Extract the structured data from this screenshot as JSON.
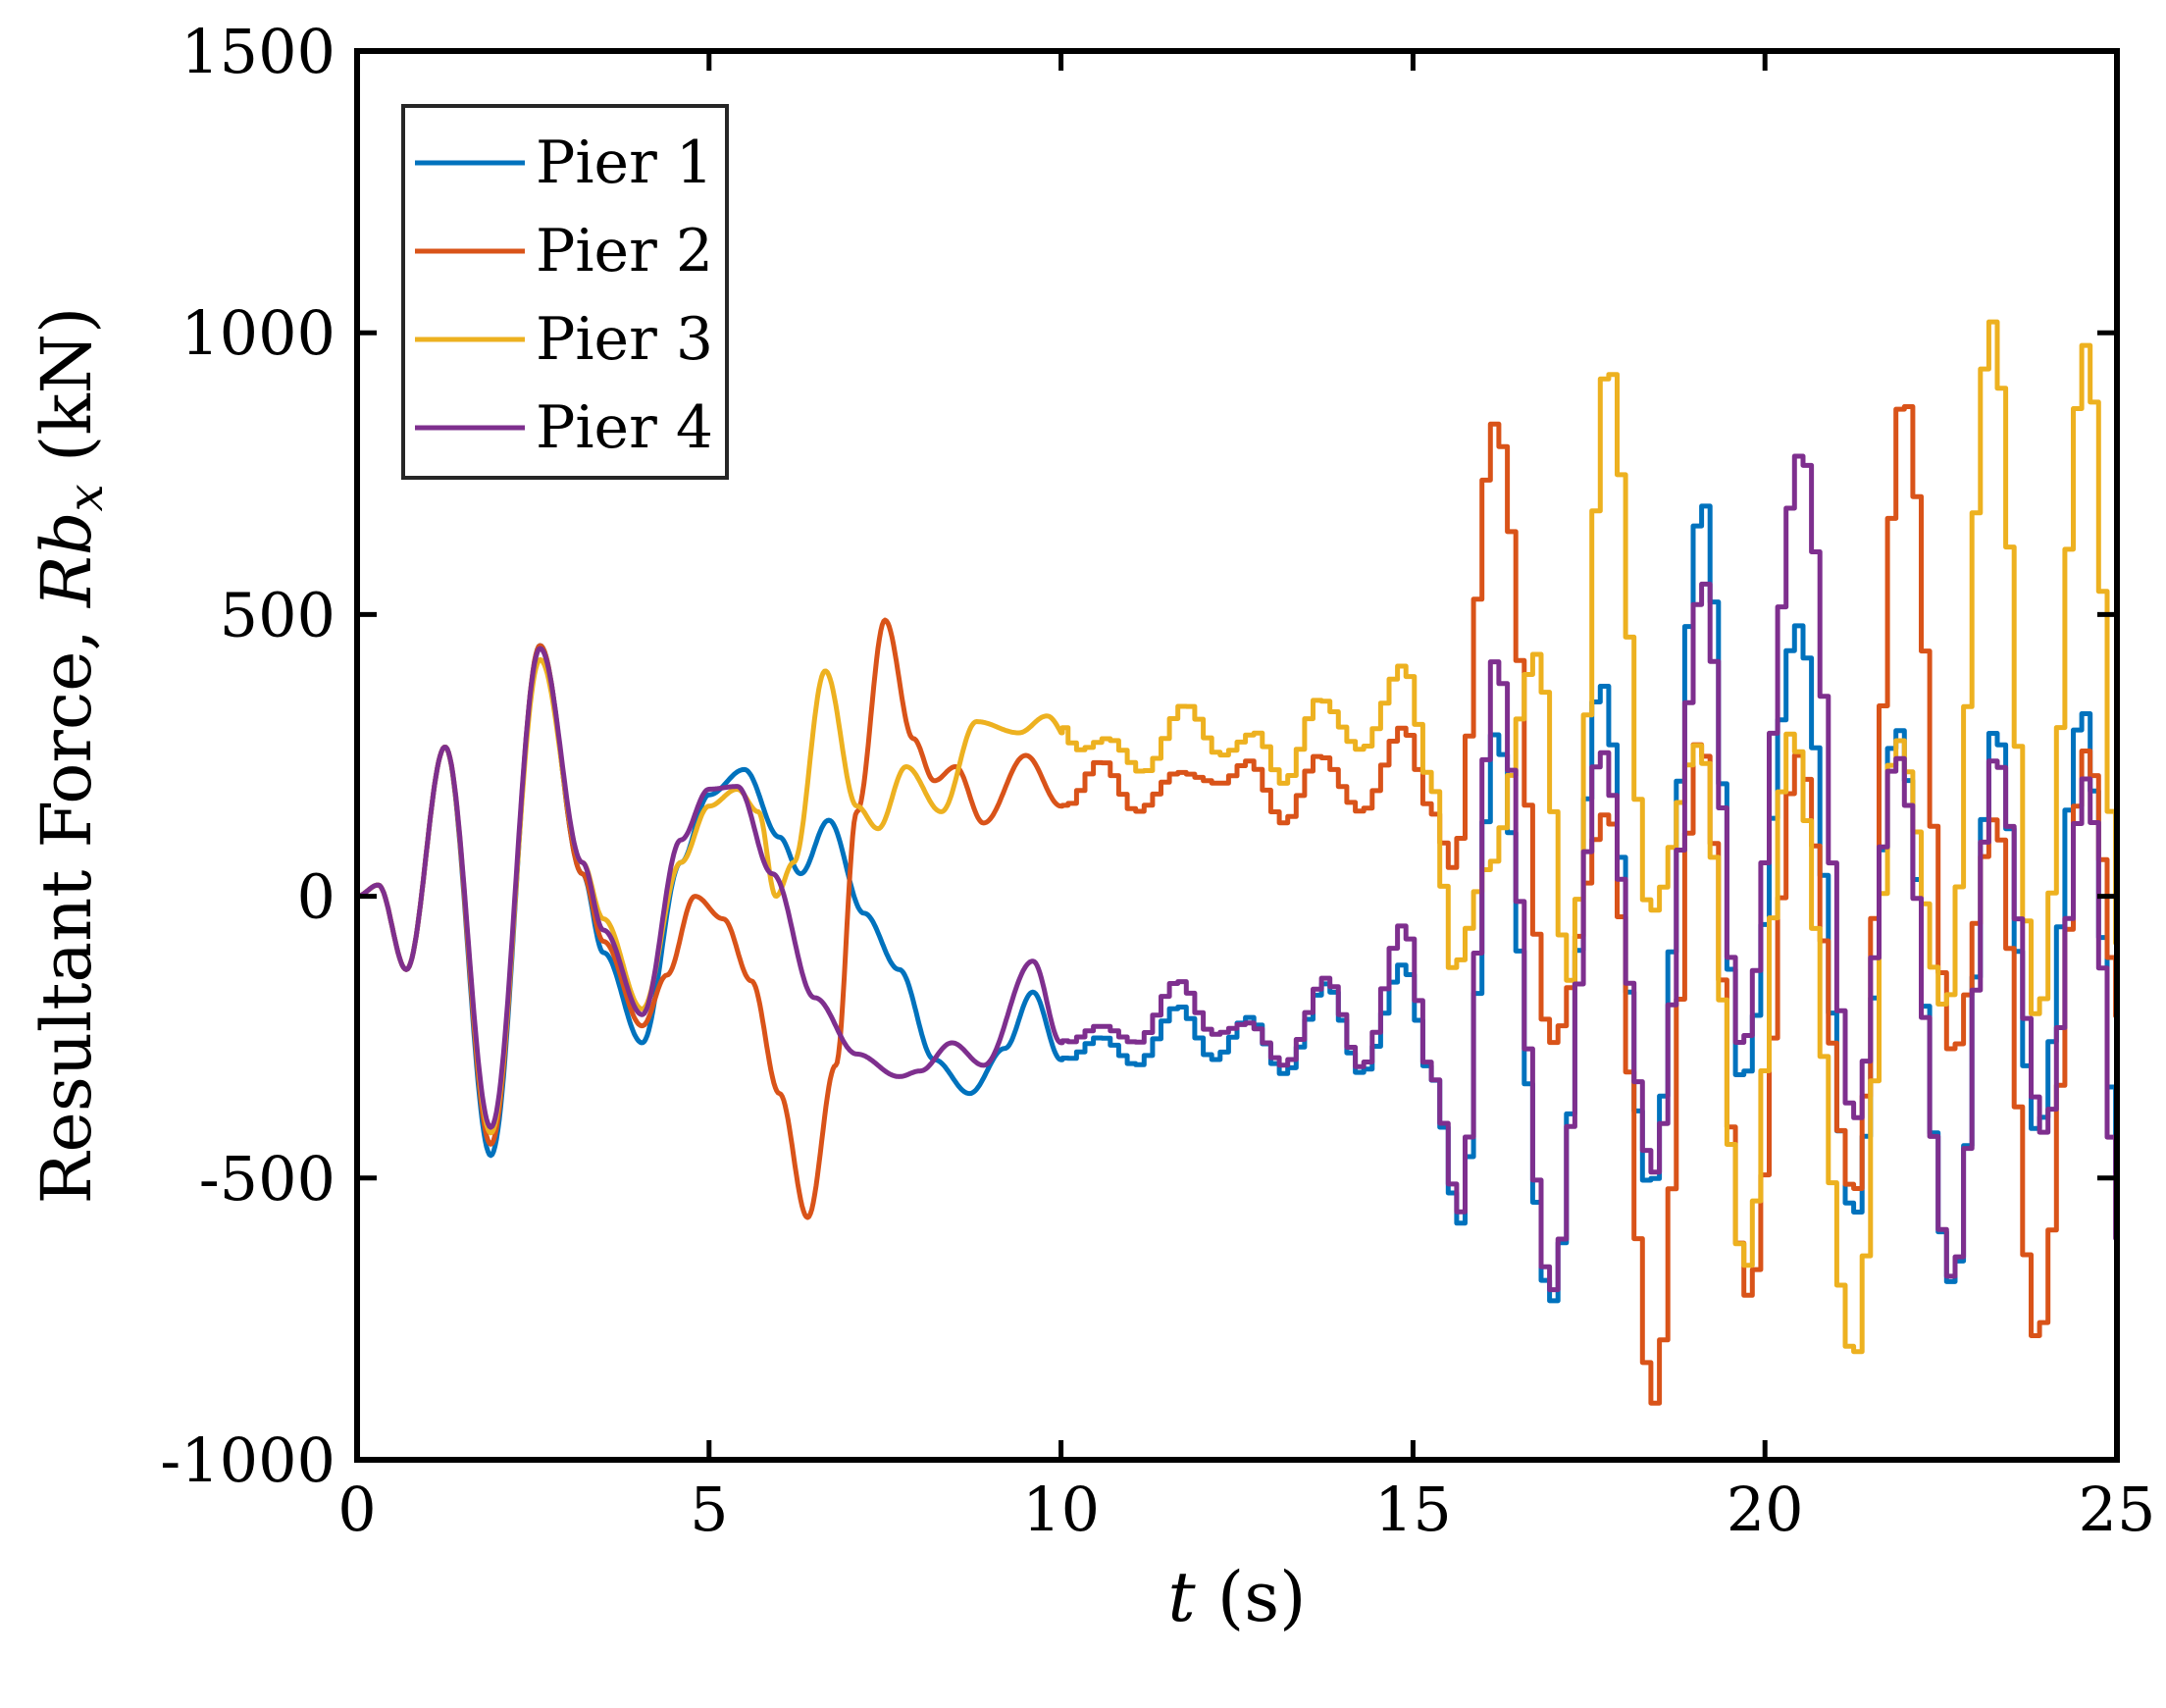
{
  "chart_data": {
    "type": "line",
    "title": "",
    "xlabel": {
      "var": "t",
      "unit": "(s)"
    },
    "ylabel": {
      "prefix": "Resultant Force, ",
      "var": "Rb",
      "sub": "x",
      "unit": "(kN)"
    },
    "xlim": [
      0,
      25
    ],
    "ylim": [
      -1000,
      1500
    ],
    "xticks": [
      0,
      5,
      10,
      15,
      20,
      25
    ],
    "yticks": [
      -1000,
      -500,
      0,
      500,
      1000,
      1500
    ],
    "xtick_labels": [
      "0",
      "5",
      "10",
      "15",
      "20",
      "25"
    ],
    "ytick_labels": [
      "-1000",
      "-500",
      "0",
      "500",
      "1000",
      "1500"
    ],
    "grid": false,
    "legend_position": "top-left",
    "series": [
      {
        "name": "Pier 1",
        "color": "#0072BD",
        "points": [
          [
            0,
            0
          ],
          [
            0.3,
            20
          ],
          [
            0.7,
            -130
          ],
          [
            1.25,
            265
          ],
          [
            1.9,
            -460
          ],
          [
            2.6,
            445
          ],
          [
            3.2,
            40
          ],
          [
            3.5,
            -100
          ],
          [
            4.05,
            -260
          ],
          [
            4.6,
            60
          ],
          [
            5.0,
            180
          ],
          [
            5.5,
            225
          ],
          [
            6.0,
            105
          ],
          [
            6.3,
            40
          ],
          [
            6.7,
            135
          ],
          [
            7.2,
            -30
          ],
          [
            7.7,
            -130
          ],
          [
            8.2,
            -290
          ],
          [
            8.7,
            -350
          ],
          [
            9.2,
            -270
          ],
          [
            9.6,
            -170
          ],
          [
            10,
            -290
          ],
          [
            10.5,
            -250
          ],
          [
            11,
            -300
          ],
          [
            11.6,
            -195
          ],
          [
            12.1,
            -290
          ],
          [
            12.6,
            -215
          ],
          [
            13.1,
            -315
          ],
          [
            13.7,
            -155
          ],
          [
            14.2,
            -315
          ],
          [
            14.8,
            -120
          ],
          [
            15.2,
            -320
          ],
          [
            15.6,
            -580
          ],
          [
            16.1,
            290
          ],
          [
            16.9,
            -720
          ],
          [
            17.6,
            380
          ],
          [
            18.3,
            -520
          ],
          [
            19.05,
            700
          ],
          [
            19.6,
            -330
          ],
          [
            20.4,
            480
          ],
          [
            21.2,
            -570
          ],
          [
            21.8,
            300
          ],
          [
            22.6,
            -690
          ],
          [
            23.2,
            300
          ],
          [
            23.8,
            -420
          ],
          [
            24.45,
            330
          ],
          [
            25,
            -500
          ]
        ]
      },
      {
        "name": "Pier 2",
        "color": "#D95319",
        "points": [
          [
            0,
            0
          ],
          [
            0.3,
            20
          ],
          [
            0.7,
            -130
          ],
          [
            1.25,
            265
          ],
          [
            1.9,
            -440
          ],
          [
            2.6,
            445
          ],
          [
            3.2,
            40
          ],
          [
            3.5,
            -80
          ],
          [
            4.05,
            -230
          ],
          [
            4.4,
            -140
          ],
          [
            4.8,
            0
          ],
          [
            5.2,
            -40
          ],
          [
            5.6,
            -150
          ],
          [
            6.0,
            -350
          ],
          [
            6.4,
            -570
          ],
          [
            6.8,
            -300
          ],
          [
            7.1,
            150
          ],
          [
            7.5,
            490
          ],
          [
            7.9,
            280
          ],
          [
            8.2,
            205
          ],
          [
            8.5,
            230
          ],
          [
            8.9,
            130
          ],
          [
            9.5,
            250
          ],
          [
            10,
            160
          ],
          [
            10.5,
            240
          ],
          [
            11.0,
            150
          ],
          [
            11.6,
            220
          ],
          [
            12.2,
            200
          ],
          [
            12.6,
            240
          ],
          [
            13.1,
            130
          ],
          [
            13.6,
            250
          ],
          [
            14.2,
            150
          ],
          [
            14.8,
            300
          ],
          [
            15.2,
            150
          ],
          [
            15.5,
            50
          ],
          [
            16.1,
            840
          ],
          [
            16.9,
            -260
          ],
          [
            17.7,
            150
          ],
          [
            18.35,
            -900
          ],
          [
            19.0,
            280
          ],
          [
            19.7,
            -710
          ],
          [
            20.4,
            250
          ],
          [
            21.2,
            -530
          ],
          [
            21.9,
            890
          ],
          [
            22.6,
            -280
          ],
          [
            23.2,
            140
          ],
          [
            23.8,
            -790
          ],
          [
            24.5,
            260
          ],
          [
            25,
            -220
          ]
        ]
      },
      {
        "name": "Pier 3",
        "color": "#EDB120",
        "points": [
          [
            0,
            0
          ],
          [
            0.3,
            20
          ],
          [
            0.7,
            -130
          ],
          [
            1.25,
            265
          ],
          [
            1.9,
            -420
          ],
          [
            2.6,
            420
          ],
          [
            3.2,
            60
          ],
          [
            3.5,
            -40
          ],
          [
            4.05,
            -200
          ],
          [
            4.6,
            60
          ],
          [
            5.0,
            160
          ],
          [
            5.4,
            190
          ],
          [
            5.7,
            150
          ],
          [
            5.95,
            0
          ],
          [
            6.2,
            60
          ],
          [
            6.65,
            400
          ],
          [
            7.1,
            160
          ],
          [
            7.4,
            120
          ],
          [
            7.8,
            230
          ],
          [
            8.3,
            150
          ],
          [
            8.8,
            310
          ],
          [
            9.4,
            290
          ],
          [
            9.8,
            320
          ],
          [
            10.2,
            260
          ],
          [
            10.6,
            280
          ],
          [
            11.1,
            220
          ],
          [
            11.7,
            340
          ],
          [
            12.2,
            250
          ],
          [
            12.7,
            290
          ],
          [
            13.1,
            200
          ],
          [
            13.6,
            350
          ],
          [
            14.2,
            260
          ],
          [
            14.8,
            410
          ],
          [
            15.2,
            200
          ],
          [
            15.5,
            -130
          ],
          [
            16.0,
            50
          ],
          [
            16.7,
            430
          ],
          [
            17.15,
            -150
          ],
          [
            17.7,
            950
          ],
          [
            18.3,
            -30
          ],
          [
            19.0,
            270
          ],
          [
            19.65,
            -660
          ],
          [
            20.3,
            290
          ],
          [
            21.2,
            -820
          ],
          [
            21.8,
            280
          ],
          [
            22.5,
            -200
          ],
          [
            23.15,
            1020
          ],
          [
            23.8,
            -220
          ],
          [
            24.5,
            980
          ],
          [
            25,
            -100
          ]
        ]
      },
      {
        "name": "Pier 4",
        "color": "#7E2F8E",
        "points": [
          [
            0,
            0
          ],
          [
            0.3,
            20
          ],
          [
            0.7,
            -130
          ],
          [
            1.25,
            265
          ],
          [
            1.9,
            -410
          ],
          [
            2.6,
            440
          ],
          [
            3.2,
            60
          ],
          [
            3.5,
            -60
          ],
          [
            4.05,
            -210
          ],
          [
            4.6,
            100
          ],
          [
            5.0,
            190
          ],
          [
            5.4,
            195
          ],
          [
            5.9,
            40
          ],
          [
            6.5,
            -180
          ],
          [
            7.1,
            -280
          ],
          [
            7.7,
            -320
          ],
          [
            8.0,
            -310
          ],
          [
            8.45,
            -260
          ],
          [
            8.9,
            -300
          ],
          [
            9.6,
            -115
          ],
          [
            10,
            -260
          ],
          [
            10.5,
            -230
          ],
          [
            11,
            -260
          ],
          [
            11.6,
            -150
          ],
          [
            12.1,
            -245
          ],
          [
            12.6,
            -225
          ],
          [
            13.1,
            -300
          ],
          [
            13.7,
            -145
          ],
          [
            14.2,
            -305
          ],
          [
            14.8,
            -50
          ],
          [
            15.2,
            -320
          ],
          [
            15.6,
            -560
          ],
          [
            16.1,
            420
          ],
          [
            16.9,
            -700
          ],
          [
            17.6,
            260
          ],
          [
            18.35,
            -490
          ],
          [
            19.05,
            560
          ],
          [
            19.6,
            -270
          ],
          [
            20.45,
            790
          ],
          [
            21.2,
            -400
          ],
          [
            21.8,
            250
          ],
          [
            22.6,
            -680
          ],
          [
            23.2,
            250
          ],
          [
            23.9,
            -420
          ],
          [
            24.5,
            210
          ],
          [
            25,
            -620
          ]
        ]
      }
    ]
  }
}
